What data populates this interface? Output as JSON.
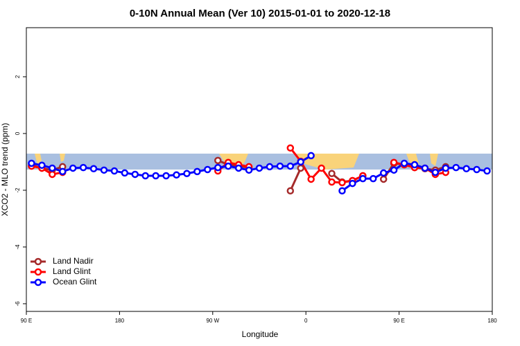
{
  "chart_data": {
    "type": "line",
    "title": "0-10N Annual Mean (Ver 10)   2015-01-01 to 2020-12-18",
    "x_label": "Longitude",
    "y_label": "XCO2 - MLO trend (ppm)",
    "xlim": [
      90,
      540
    ],
    "xticks": [
      {
        "value": 90,
        "label": "90 E"
      },
      {
        "value": 180,
        "label": "180"
      },
      {
        "value": 270,
        "label": "90 W"
      },
      {
        "value": 360,
        "label": "0"
      },
      {
        "value": 450,
        "label": "90 E"
      },
      {
        "value": 540,
        "label": "180"
      }
    ],
    "ylim": [
      -6.27,
      3.73
    ],
    "yticks": [
      -6,
      -4,
      -2,
      0,
      2
    ],
    "legend": "bottom-left",
    "x": [
      95,
      105,
      115,
      125,
      135,
      145,
      155,
      165,
      175,
      185,
      195,
      205,
      215,
      225,
      235,
      245,
      255,
      265,
      275,
      285,
      295,
      305,
      315,
      325,
      335,
      345,
      355,
      365,
      375,
      385,
      395,
      405,
      415,
      425,
      435,
      445,
      455,
      465,
      475,
      485,
      495,
      505,
      515,
      525,
      535
    ],
    "series": [
      {
        "name": "Land Nadir",
        "color": "#a52a2a",
        "values": [
          -1.12,
          -1.22,
          -1.29,
          -1.17,
          null,
          null,
          null,
          null,
          null,
          null,
          null,
          null,
          null,
          null,
          null,
          null,
          null,
          null,
          -0.95,
          -1.1,
          -1.15,
          -1.2,
          null,
          null,
          null,
          -2.02,
          -1.22,
          null,
          null,
          -1.41,
          -1.71,
          -1.66,
          -1.49,
          null,
          -1.61,
          -1.05,
          -1.1,
          -1.2,
          -1.24,
          -1.29,
          -1.17,
          null,
          null,
          null,
          null
        ]
      },
      {
        "name": "Land Glint",
        "color": "#ff0000",
        "values": [
          -1.15,
          -1.22,
          -1.44,
          -1.37,
          null,
          null,
          null,
          null,
          null,
          null,
          null,
          null,
          null,
          null,
          null,
          null,
          null,
          null,
          -1.32,
          -1.02,
          -1.1,
          -1.17,
          null,
          null,
          null,
          -0.51,
          -0.98,
          -1.61,
          -1.22,
          -1.71,
          -1.73,
          -1.66,
          -1.49,
          null,
          null,
          -1.02,
          -1.1,
          -1.2,
          -1.22,
          -1.44,
          -1.37,
          null,
          null,
          null,
          null
        ]
      },
      {
        "name": "Ocean Glint",
        "color": "#0000ff",
        "values": [
          -1.05,
          -1.12,
          -1.22,
          -1.34,
          -1.22,
          -1.2,
          -1.24,
          -1.29,
          -1.32,
          -1.39,
          -1.44,
          -1.49,
          -1.49,
          -1.49,
          -1.46,
          -1.41,
          -1.34,
          -1.27,
          -1.2,
          -1.15,
          -1.22,
          -1.29,
          -1.22,
          -1.17,
          -1.15,
          -1.15,
          -1.0,
          -0.78,
          null,
          null,
          -2.02,
          -1.76,
          -1.59,
          -1.59,
          -1.39,
          -1.29,
          -1.05,
          -1.1,
          -1.22,
          -1.37,
          -1.22,
          -1.2,
          -1.24,
          -1.27,
          -1.32
        ]
      }
    ]
  }
}
